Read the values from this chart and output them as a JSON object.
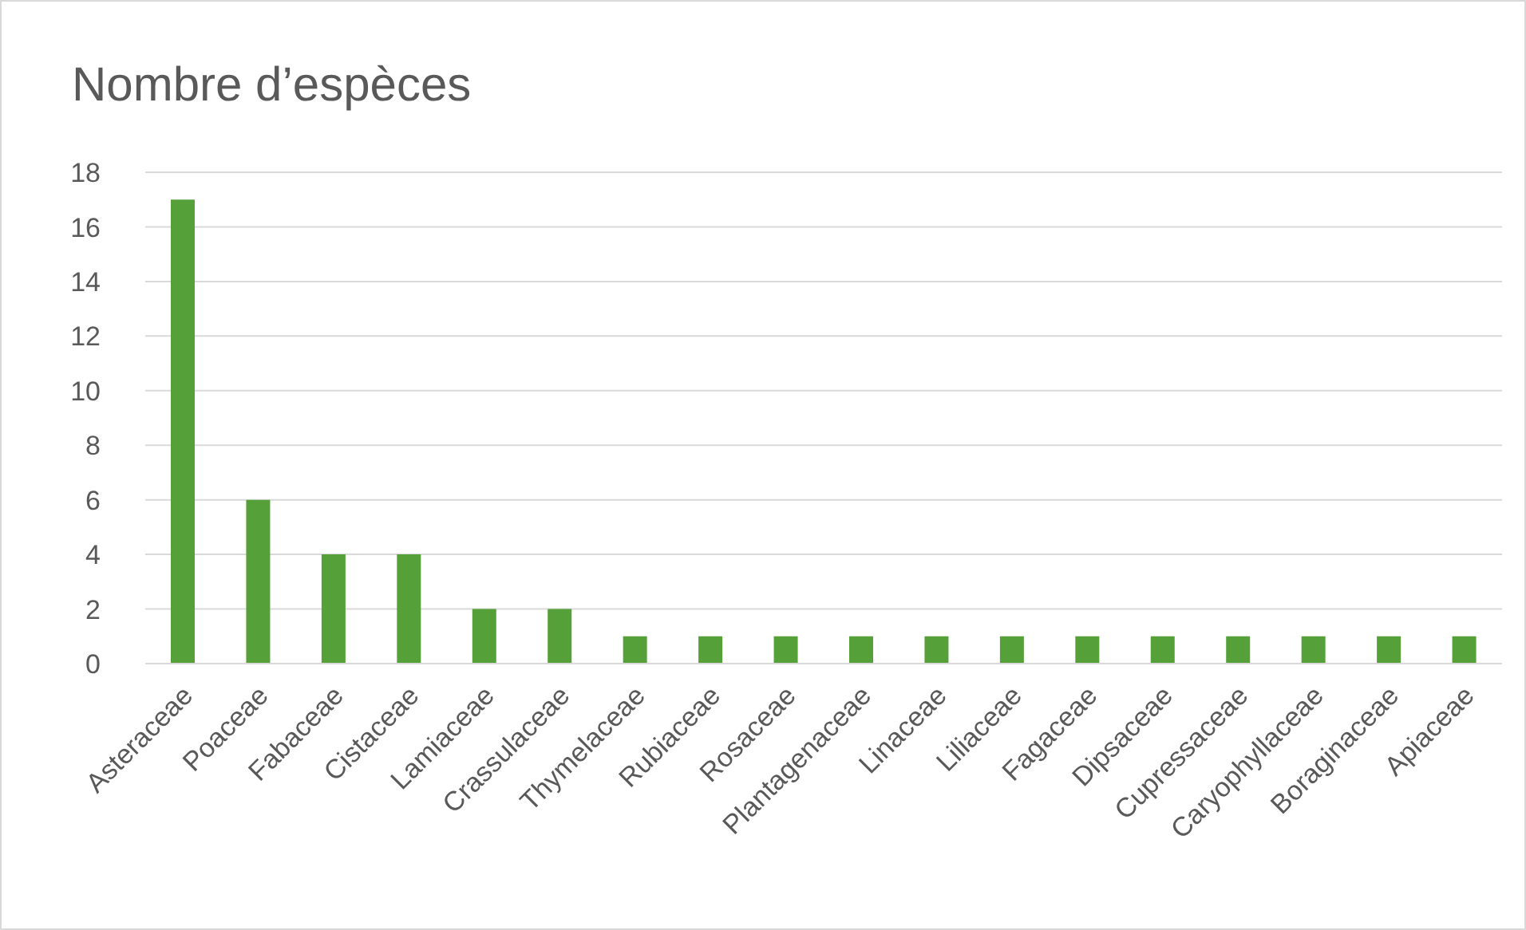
{
  "chart_data": {
    "type": "bar",
    "title": "Nombre d’espèces",
    "categories": [
      "Asteraceae",
      "Poaceae",
      "Fabaceae",
      "Cistaceae",
      "Lamiaceae",
      "Crassulaceae",
      "Thymelaceae",
      "Rubiaceae",
      "Rosaceae",
      "Plantagenaceae",
      "Linaceae",
      "Liliaceae",
      "Fagaceae",
      "Dipsaceae",
      "Cupressaceae",
      "Caryophyllaceae",
      "Boraginaceae",
      "Apiaceae"
    ],
    "values": [
      17,
      6,
      4,
      4,
      2,
      2,
      1,
      1,
      1,
      1,
      1,
      1,
      1,
      1,
      1,
      1,
      1,
      1
    ],
    "color": "#56a03a",
    "ylim": [
      0,
      18
    ],
    "yticks": [
      0,
      2,
      4,
      6,
      8,
      10,
      12,
      14,
      16,
      18
    ],
    "grid": "y"
  }
}
